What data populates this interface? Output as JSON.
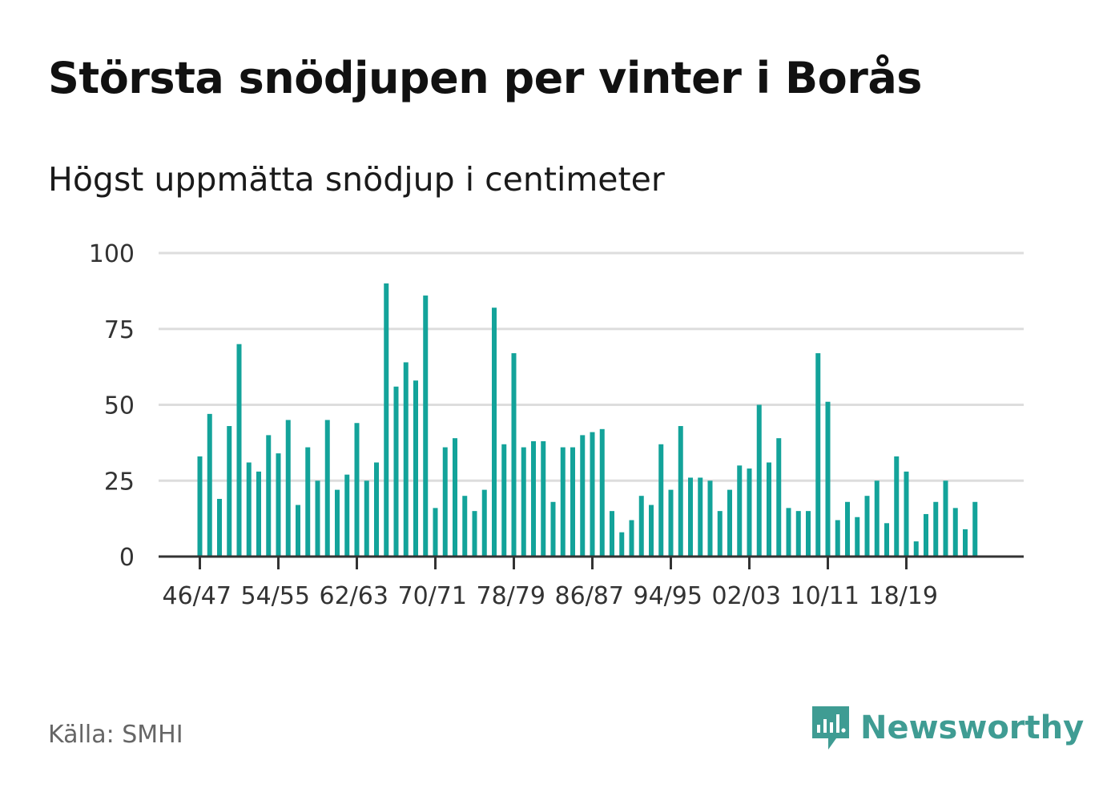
{
  "header": {
    "title": "Största snödjupen per vinter i Borås",
    "subtitle": "Högst uppmätta snödjup i centimeter"
  },
  "footer": {
    "source": "Källa: SMHI",
    "brand": "Newsworthy"
  },
  "colors": {
    "bar": "#13a39a",
    "grid": "#dddddd",
    "axis": "#333333",
    "brand": "#3f9c93"
  },
  "chart_data": {
    "type": "bar",
    "title": "Största snödjupen per vinter i Borås",
    "subtitle": "Högst uppmätta snödjup i centimeter",
    "xlabel": "",
    "ylabel": "",
    "ylim": [
      0,
      100
    ],
    "yticks": [
      0,
      25,
      50,
      75,
      100
    ],
    "grid": true,
    "xtick_labels": [
      "46/47",
      "54/55",
      "62/63",
      "70/71",
      "78/79",
      "86/87",
      "94/95",
      "02/03",
      "10/11",
      "18/19"
    ],
    "xtick_indices": [
      0,
      8,
      16,
      24,
      32,
      40,
      48,
      56,
      64,
      72
    ],
    "categories": [
      "46/47",
      "47/48",
      "48/49",
      "49/50",
      "50/51",
      "51/52",
      "52/53",
      "53/54",
      "54/55",
      "55/56",
      "56/57",
      "57/58",
      "58/59",
      "59/60",
      "60/61",
      "61/62",
      "62/63",
      "63/64",
      "64/65",
      "65/66",
      "66/67",
      "67/68",
      "68/69",
      "69/70",
      "70/71",
      "71/72",
      "72/73",
      "73/74",
      "74/75",
      "75/76",
      "76/77",
      "77/78",
      "78/79",
      "79/80",
      "80/81",
      "81/82",
      "82/83",
      "83/84",
      "84/85",
      "85/86",
      "86/87",
      "87/88",
      "88/89",
      "89/90",
      "90/91",
      "91/92",
      "92/93",
      "93/94",
      "94/95",
      "95/96",
      "96/97",
      "97/98",
      "98/99",
      "99/00",
      "00/01",
      "01/02",
      "02/03",
      "03/04",
      "04/05",
      "05/06",
      "06/07",
      "07/08",
      "08/09",
      "09/10",
      "10/11",
      "11/12",
      "12/13",
      "13/14",
      "14/15",
      "15/16",
      "16/17",
      "17/18",
      "18/19",
      "19/20",
      "20/21",
      "21/22",
      "22/23",
      "23/24",
      "24/25",
      "25/26"
    ],
    "values": [
      33,
      47,
      19,
      43,
      70,
      31,
      28,
      40,
      34,
      45,
      17,
      36,
      25,
      45,
      22,
      27,
      44,
      25,
      31,
      90,
      56,
      64,
      58,
      86,
      16,
      36,
      39,
      20,
      15,
      22,
      82,
      37,
      67,
      36,
      38,
      38,
      18,
      36,
      36,
      40,
      41,
      42,
      15,
      8,
      12,
      20,
      17,
      37,
      22,
      43,
      26,
      26,
      25,
      15,
      22,
      30,
      29,
      50,
      31,
      39,
      16,
      15,
      15,
      67,
      51,
      12,
      18,
      13,
      20,
      25,
      11,
      33,
      28,
      5,
      14,
      18,
      25,
      16,
      9,
      18
    ]
  }
}
